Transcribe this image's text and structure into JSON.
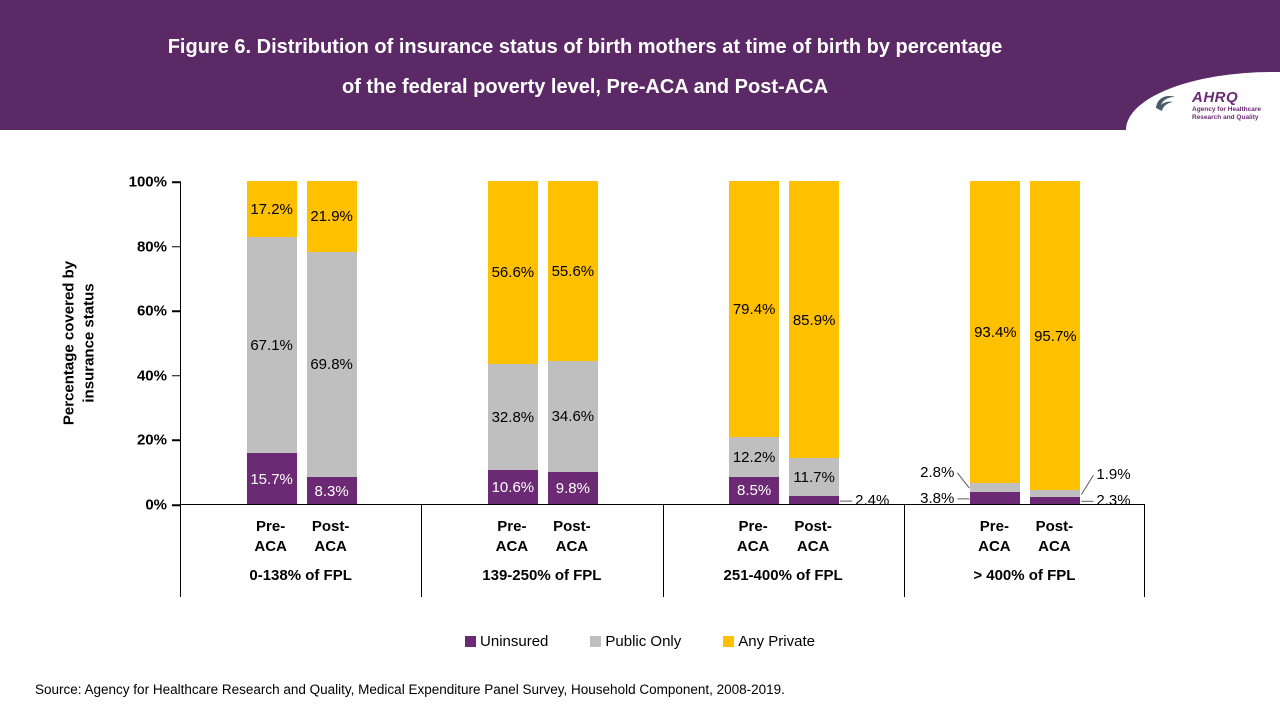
{
  "header": {
    "title_line1": "Figure 6. Distribution of insurance status of birth mothers at time of birth by percentage",
    "title_line2": "of the federal poverty level, Pre-ACA and Post-ACA",
    "background": "#5b2a66",
    "logo": {
      "name": "AHRQ",
      "tagline": "Agency for Healthcare Research and Quality"
    }
  },
  "chart_data": {
    "type": "bar",
    "stacked": true,
    "title": "Figure 6. Distribution of insurance status of birth mothers at time of birth by percentage of the federal poverty level, Pre-ACA and Post-ACA",
    "ylabel_line1": "Percentage covered by",
    "ylabel_line2": "insurance status",
    "ylim": [
      0,
      100
    ],
    "yticks": [
      {
        "value": 0,
        "label": "0%"
      },
      {
        "value": 20,
        "label": "20%"
      },
      {
        "value": 40,
        "label": "40%"
      },
      {
        "value": 60,
        "label": "60%"
      },
      {
        "value": 80,
        "label": "80%"
      },
      {
        "value": 100,
        "label": "100%"
      }
    ],
    "series": [
      "Uninsured",
      "Public Only",
      "Any Private"
    ],
    "colors": [
      "#6d2a74",
      "#bfbfbf",
      "#ffc000"
    ],
    "label_text_colors": [
      "#ffffff",
      "#000000",
      "#000000"
    ],
    "legend_position": "bottom",
    "groups": [
      {
        "label": "0-138% of FPL",
        "bars": [
          {
            "name": [
              "Pre-",
              "ACA"
            ],
            "values": [
              15.7,
              67.1,
              17.2
            ],
            "label_pos": [
              "inside",
              "inside",
              "inside"
            ]
          },
          {
            "name": [
              "Post-",
              "ACA"
            ],
            "values": [
              8.3,
              69.8,
              21.9
            ],
            "label_pos": [
              "inside",
              "inside",
              "inside"
            ]
          }
        ]
      },
      {
        "label": "139-250% of FPL",
        "bars": [
          {
            "name": [
              "Pre-",
              "ACA"
            ],
            "values": [
              10.6,
              32.8,
              56.6
            ],
            "label_pos": [
              "inside",
              "inside",
              "inside"
            ]
          },
          {
            "name": [
              "Post-",
              "ACA"
            ],
            "values": [
              9.8,
              34.6,
              55.6
            ],
            "label_pos": [
              "inside",
              "inside",
              "inside"
            ]
          }
        ]
      },
      {
        "label": "251-400% of FPL",
        "bars": [
          {
            "name": [
              "Pre-",
              "ACA"
            ],
            "values": [
              8.5,
              12.2,
              79.4
            ],
            "label_pos": [
              "inside",
              "inside",
              "inside"
            ]
          },
          {
            "name": [
              "Post-",
              "ACA"
            ],
            "values": [
              2.4,
              11.7,
              85.9
            ],
            "label_pos": [
              "right",
              "inside",
              "inside"
            ]
          }
        ]
      },
      {
        "label": "> 400% of FPL",
        "bars": [
          {
            "name": [
              "Pre-",
              "ACA"
            ],
            "values": [
              3.8,
              2.8,
              93.4
            ],
            "label_pos": [
              "left",
              "left",
              "inside"
            ]
          },
          {
            "name": [
              "Post-",
              "ACA"
            ],
            "values": [
              2.3,
              1.9,
              95.7
            ],
            "label_pos": [
              "right",
              "right",
              "inside"
            ]
          }
        ]
      }
    ]
  },
  "legend": [
    {
      "label": "Uninsured",
      "color": "#6d2a74"
    },
    {
      "label": "Public Only",
      "color": "#bfbfbf"
    },
    {
      "label": "Any Private",
      "color": "#ffc000"
    }
  ],
  "footer": {
    "source": "Source: Agency for Healthcare Research and Quality, Medical Expenditure Panel Survey, Household Component, 2008-2019."
  }
}
